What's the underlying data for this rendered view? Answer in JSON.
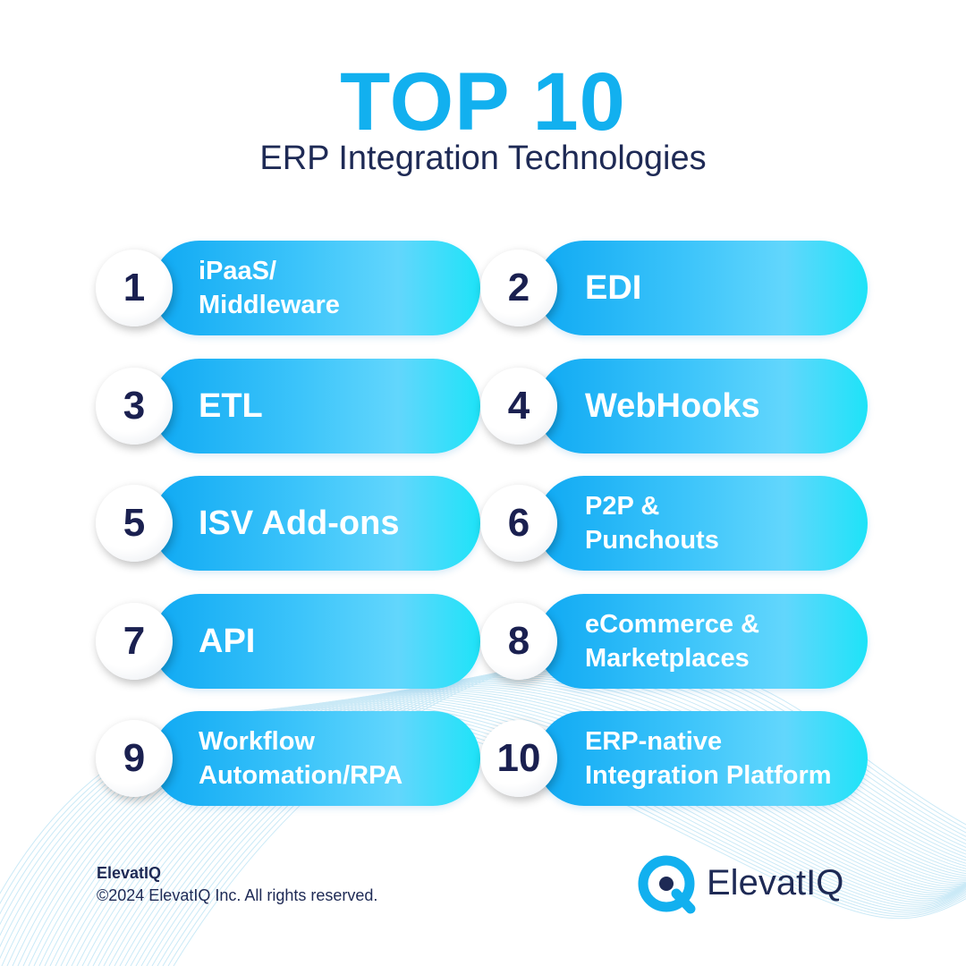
{
  "header": {
    "title": "TOP 10",
    "subtitle": "ERP Integration Technologies"
  },
  "items": [
    {
      "number": "1",
      "lines": [
        "iPaaS/",
        "Middleware"
      ]
    },
    {
      "number": "2",
      "lines": [
        "EDI"
      ]
    },
    {
      "number": "3",
      "lines": [
        "ETL"
      ]
    },
    {
      "number": "4",
      "lines": [
        "WebHooks"
      ]
    },
    {
      "number": "5",
      "lines": [
        "ISV Add-ons"
      ]
    },
    {
      "number": "6",
      "lines": [
        "P2P &",
        "Punchouts"
      ]
    },
    {
      "number": "7",
      "lines": [
        "API"
      ]
    },
    {
      "number": "8",
      "lines": [
        "eCommerce &",
        "Marketplaces"
      ]
    },
    {
      "number": "9",
      "lines": [
        "Workflow",
        "Automation/RPA"
      ]
    },
    {
      "number": "10",
      "lines": [
        "ERP-native",
        "Integration Platform"
      ]
    }
  ],
  "footer": {
    "company": "ElevatIQ",
    "copyright": "©2024 ElevatIQ Inc. All rights reserved.",
    "logo": "ElevatIQ"
  }
}
